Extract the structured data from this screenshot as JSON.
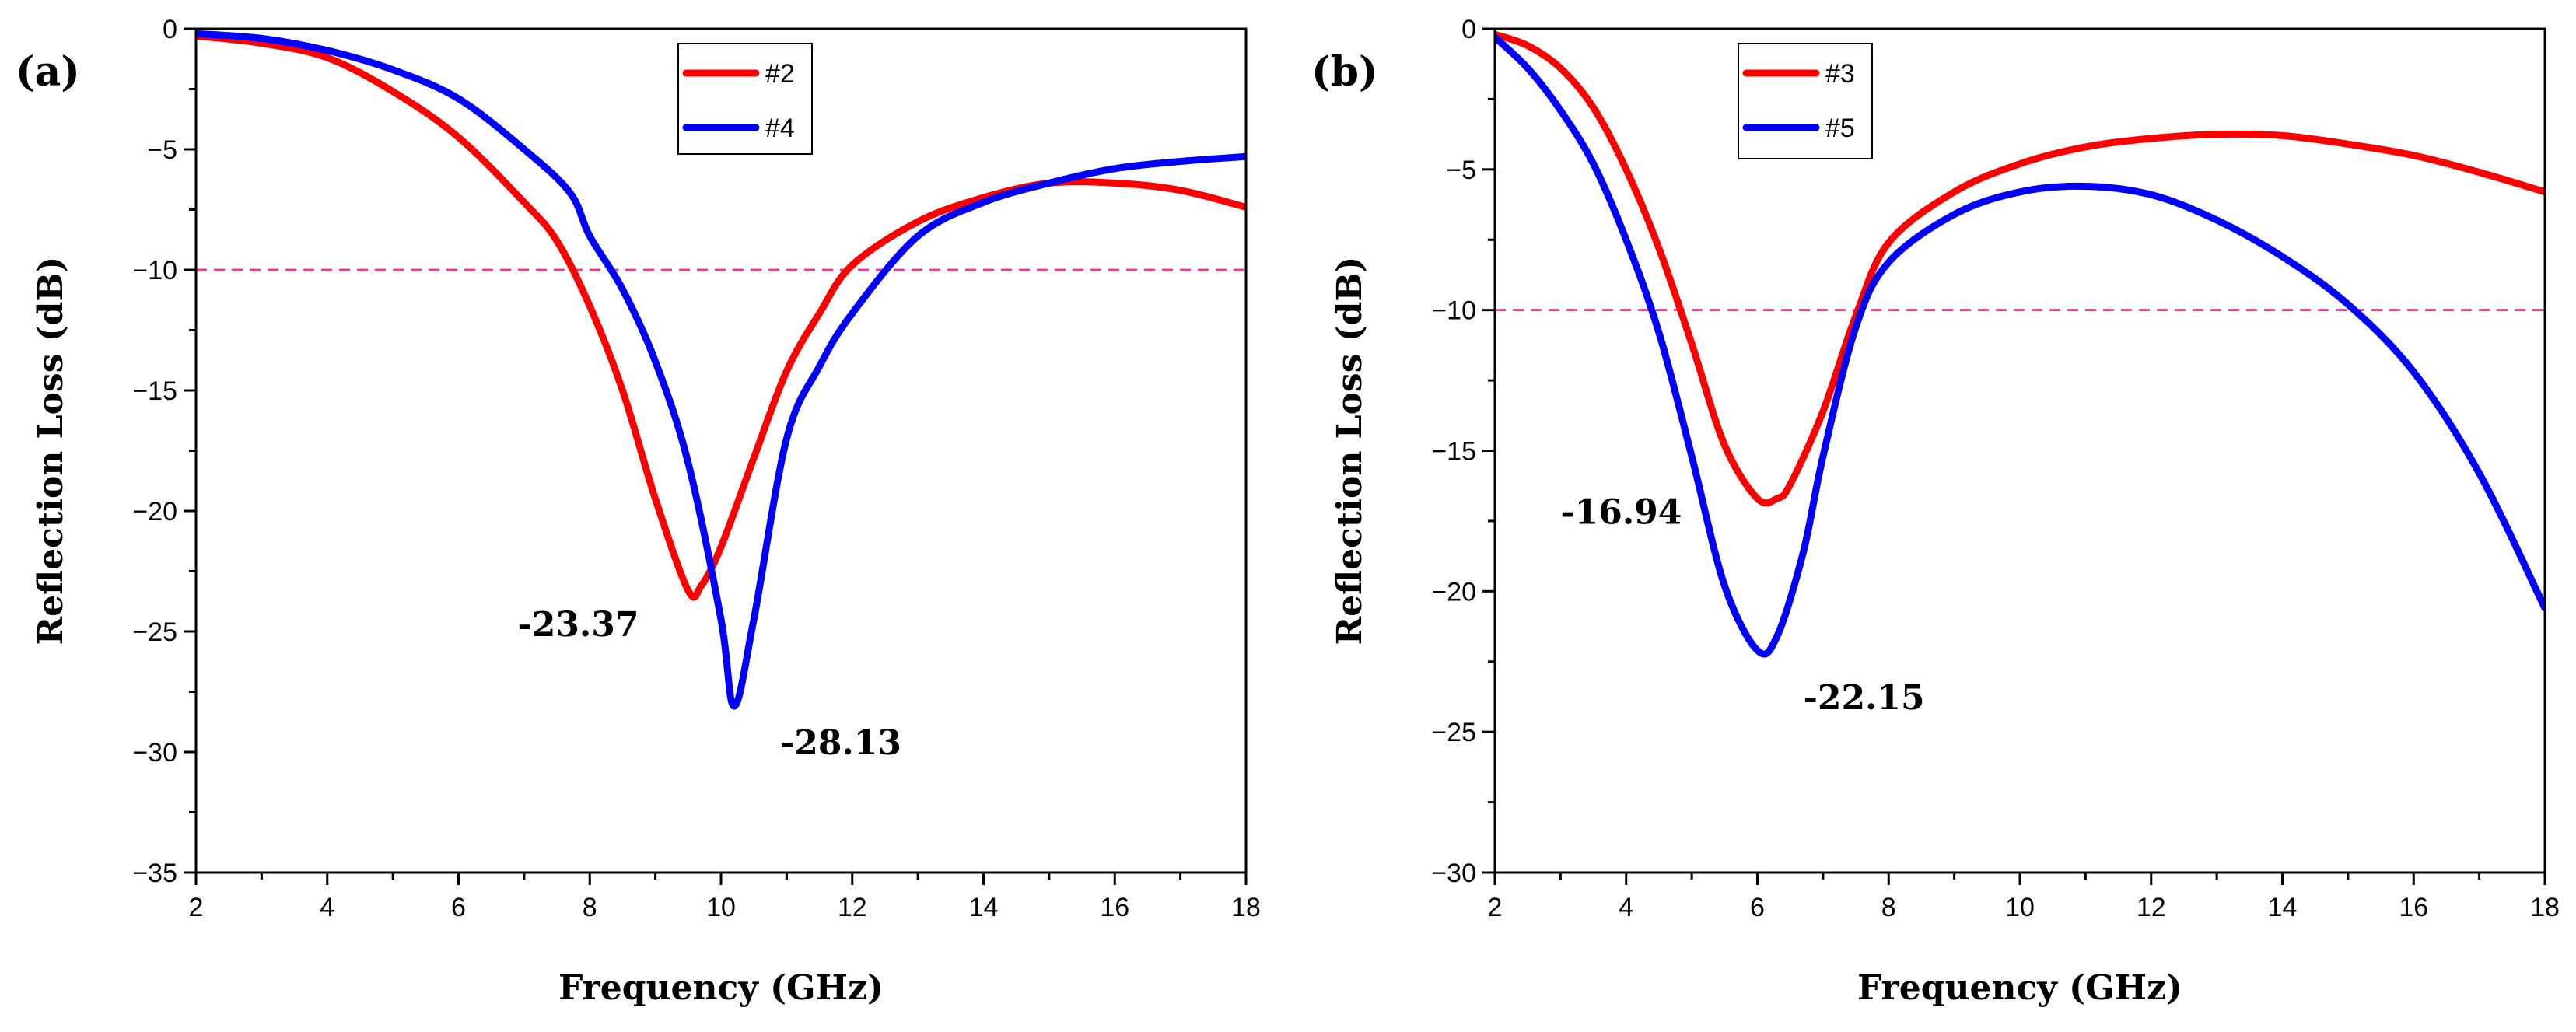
{
  "chart_data": [
    {
      "type": "line",
      "panel_label": "(a)",
      "xlabel": "Frequency (GHz)",
      "ylabel": "Reflection Loss (dB)",
      "xlim": [
        2,
        18
      ],
      "ylim": [
        -35,
        0
      ],
      "xticks": [
        2,
        4,
        6,
        8,
        10,
        12,
        14,
        16,
        18
      ],
      "yticks": [
        0,
        -5,
        -10,
        -15,
        -20,
        -25,
        -30,
        -35
      ],
      "xtick_labels": [
        "2",
        "4",
        "6",
        "8",
        "10",
        "12",
        "14",
        "16",
        "18"
      ],
      "ytick_labels": [
        "0",
        "−5",
        "−10",
        "−15",
        "−20",
        "−25",
        "−30",
        "−35"
      ],
      "reference_line": -10,
      "legend_position": "top-center",
      "series": [
        {
          "name": "#2",
          "color": "#ff0000",
          "x": [
            2,
            3,
            4,
            5,
            6,
            7,
            7.5,
            8,
            8.5,
            9,
            9.5,
            9.7,
            10,
            10.5,
            11,
            11.5,
            12,
            13,
            14,
            15,
            16,
            17,
            18
          ],
          "y": [
            -0.3,
            -0.6,
            -1.2,
            -2.6,
            -4.5,
            -7.2,
            -8.8,
            -11.5,
            -15.0,
            -19.5,
            -23.3,
            -23.1,
            -21.5,
            -17.8,
            -14.2,
            -11.8,
            -9.8,
            -8.0,
            -7.0,
            -6.4,
            -6.4,
            -6.7,
            -7.4
          ]
        },
        {
          "name": "#4",
          "color": "#0000ff",
          "x": [
            2,
            3,
            4,
            5,
            6,
            7,
            7.7,
            8,
            8.5,
            9,
            9.5,
            10,
            10.2,
            10.5,
            11,
            11.5,
            12,
            13,
            14,
            15,
            16,
            17,
            18
          ],
          "y": [
            -0.2,
            -0.4,
            -0.9,
            -1.7,
            -2.9,
            -5.0,
            -6.8,
            -8.6,
            -10.8,
            -13.8,
            -18.0,
            -24.5,
            -28.1,
            -24.5,
            -17.0,
            -14.0,
            -11.8,
            -8.6,
            -7.2,
            -6.4,
            -5.8,
            -5.5,
            -5.3
          ]
        }
      ],
      "annotations": [
        {
          "text": "-23.37",
          "x": 6.9,
          "y": -25.2
        },
        {
          "text": "-28.13",
          "x": 10.9,
          "y": -30.1
        }
      ]
    },
    {
      "type": "line",
      "panel_label": "(b)",
      "xlabel": "Frequency (GHz)",
      "ylabel": "Reflection Loss (dB)",
      "xlim": [
        2,
        18
      ],
      "ylim": [
        -30,
        0
      ],
      "xticks": [
        2,
        4,
        6,
        8,
        10,
        12,
        14,
        16,
        18
      ],
      "yticks": [
        0,
        -5,
        -10,
        -15,
        -20,
        -25,
        -30
      ],
      "xtick_labels": [
        "2",
        "4",
        "6",
        "8",
        "10",
        "12",
        "14",
        "16",
        "18"
      ],
      "ytick_labels": [
        "0",
        "−5",
        "−10",
        "−15",
        "−20",
        "−25",
        "−30"
      ],
      "reference_line": -10,
      "legend_position": "top-left",
      "series": [
        {
          "name": "#3",
          "color": "#ff0000",
          "x": [
            2,
            2.5,
            3,
            3.5,
            4,
            4.5,
            5,
            5.5,
            6,
            6.3,
            6.5,
            7,
            7.5,
            8,
            9,
            10,
            11,
            12,
            13,
            14,
            15,
            16,
            17,
            18
          ],
          "y": [
            -0.2,
            -0.6,
            -1.4,
            -2.8,
            -5.0,
            -7.8,
            -11.2,
            -14.8,
            -16.7,
            -16.7,
            -16.2,
            -13.6,
            -10.2,
            -7.6,
            -5.8,
            -4.8,
            -4.2,
            -3.9,
            -3.75,
            -3.8,
            -4.1,
            -4.5,
            -5.1,
            -5.8
          ]
        },
        {
          "name": "#5",
          "color": "#0000ff",
          "x": [
            2,
            2.5,
            3,
            3.5,
            4,
            4.5,
            5,
            5.5,
            6,
            6.3,
            6.7,
            7,
            7.5,
            8,
            9,
            10,
            11,
            12,
            13,
            14,
            15,
            16,
            17,
            18
          ],
          "y": [
            -0.3,
            -1.4,
            -2.9,
            -4.8,
            -7.5,
            -10.8,
            -15.2,
            -19.8,
            -22.1,
            -21.6,
            -18.6,
            -15.2,
            -10.6,
            -8.3,
            -6.6,
            -5.8,
            -5.6,
            -5.9,
            -6.8,
            -8.1,
            -9.8,
            -12.2,
            -15.8,
            -20.6
          ]
        }
      ],
      "annotations": [
        {
          "text": "-16.94",
          "x": 3.0,
          "y": -17.6
        },
        {
          "text": "-22.15",
          "x": 6.7,
          "y": -24.2
        }
      ]
    }
  ]
}
